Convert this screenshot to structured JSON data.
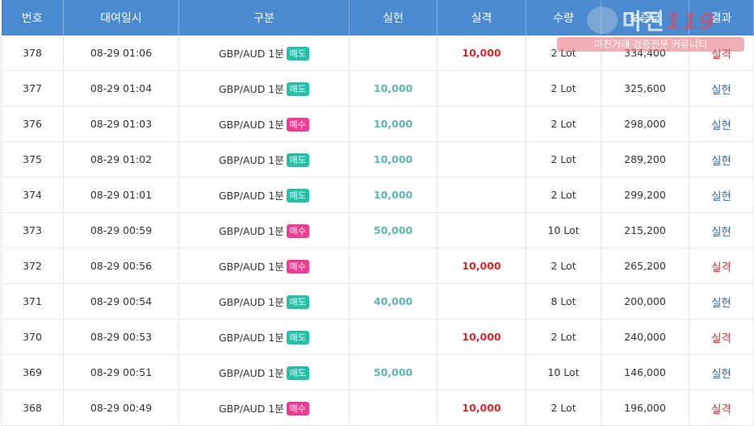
{
  "headers": [
    "번호",
    "대여일시",
    "구분",
    "실현",
    "실격",
    "수량",
    "보증금",
    "결과"
  ],
  "rows": [
    {
      "no": "378",
      "time": "08-29 01:06",
      "pair": "GBP/AUD 1분",
      "side": "매도",
      "side_type": "sell",
      "profit": "",
      "loss": "10,000",
      "qty": "2 Lot",
      "deposit": "334,400",
      "result": "실격",
      "result_type": "lose"
    },
    {
      "no": "377",
      "time": "08-29 01:04",
      "pair": "GBP/AUD 1분",
      "side": "매도",
      "side_type": "sell",
      "profit": "10,000",
      "loss": "",
      "qty": "2 Lot",
      "deposit": "325,600",
      "result": "실현",
      "result_type": "win"
    },
    {
      "no": "376",
      "time": "08-29 01:03",
      "pair": "GBP/AUD 1분",
      "side": "매수",
      "side_type": "buy",
      "profit": "10,000",
      "loss": "",
      "qty": "2 Lot",
      "deposit": "298,000",
      "result": "실현",
      "result_type": "win"
    },
    {
      "no": "375",
      "time": "08-29 01:02",
      "pair": "GBP/AUD 1분",
      "side": "매도",
      "side_type": "sell",
      "profit": "10,000",
      "loss": "",
      "qty": "2 Lot",
      "deposit": "289,200",
      "result": "실현",
      "result_type": "win"
    },
    {
      "no": "374",
      "time": "08-29 01:01",
      "pair": "GBP/AUD 1분",
      "side": "매도",
      "side_type": "sell",
      "profit": "10,000",
      "loss": "",
      "qty": "2 Lot",
      "deposit": "299,200",
      "result": "실현",
      "result_type": "win"
    },
    {
      "no": "373",
      "time": "08-29 00:59",
      "pair": "GBP/AUD 1분",
      "side": "매수",
      "side_type": "buy",
      "profit": "50,000",
      "loss": "",
      "qty": "10 Lot",
      "deposit": "215,200",
      "result": "실현",
      "result_type": "win"
    },
    {
      "no": "372",
      "time": "08-29 00:56",
      "pair": "GBP/AUD 1분",
      "side": "매수",
      "side_type": "buy",
      "profit": "",
      "loss": "10,000",
      "qty": "2 Lot",
      "deposit": "265,200",
      "result": "실격",
      "result_type": "lose"
    },
    {
      "no": "371",
      "time": "08-29 00:54",
      "pair": "GBP/AUD 1분",
      "side": "매도",
      "side_type": "sell",
      "profit": "40,000",
      "loss": "",
      "qty": "8 Lot",
      "deposit": "200,000",
      "result": "실현",
      "result_type": "win"
    },
    {
      "no": "370",
      "time": "08-29 00:53",
      "pair": "GBP/AUD 1분",
      "side": "매도",
      "side_type": "sell",
      "profit": "",
      "loss": "10,000",
      "qty": "2 Lot",
      "deposit": "240,000",
      "result": "실격",
      "result_type": "lose"
    },
    {
      "no": "369",
      "time": "08-29 00:51",
      "pair": "GBP/AUD 1분",
      "side": "매도",
      "side_type": "sell",
      "profit": "50,000",
      "loss": "",
      "qty": "10 Lot",
      "deposit": "146,000",
      "result": "실현",
      "result_type": "win"
    },
    {
      "no": "368",
      "time": "08-29 00:49",
      "pair": "GBP/AUD 1분",
      "side": "매수",
      "side_type": "buy",
      "profit": "",
      "loss": "10,000",
      "qty": "2 Lot",
      "deposit": "196,000",
      "result": "실격",
      "result_type": "lose"
    }
  ],
  "watermark": {
    "title": "마진",
    "number": "119",
    "tagline": "마진거래 검증전문 커뮤니티"
  },
  "colors": {
    "header_bg": "#4a8ad0",
    "sell": "#27bfa6",
    "buy": "#ec3d8f",
    "profit": "#5ab5ad",
    "loss": "#d22a2a",
    "win": "#2f6fa8"
  }
}
